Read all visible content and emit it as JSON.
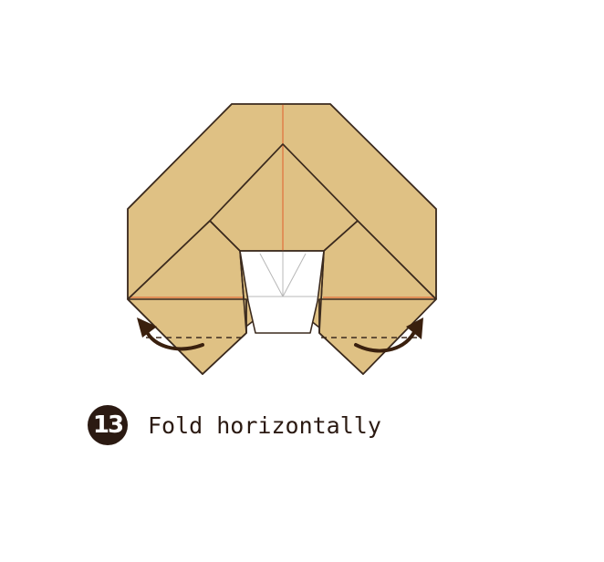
{
  "step": {
    "number": "13",
    "instruction": "Fold horizontally"
  },
  "colors": {
    "paper": "#dfc184",
    "outline": "#3b2a1e",
    "crease": "#e0703c",
    "inner_crease": "#b8b8b8",
    "arrow": "#3a200e",
    "badge": "#2b1a12",
    "background": "#ffffff"
  }
}
